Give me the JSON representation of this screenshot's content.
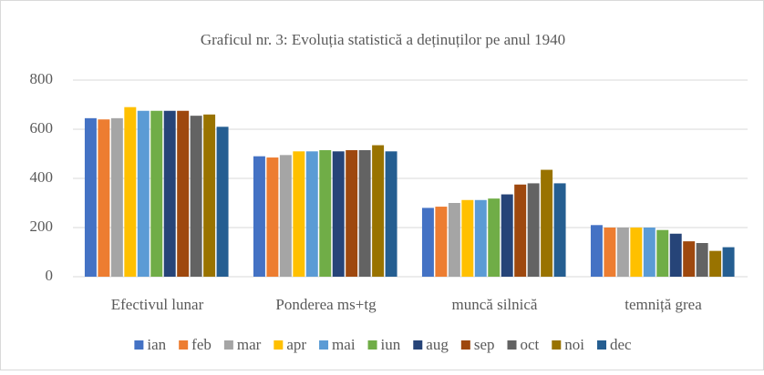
{
  "chart_data": {
    "type": "bar",
    "title": "Graficul nr. 3: Evoluția statistică a deținuților pe anul 1940",
    "categories": [
      "Efectivul lunar",
      "Ponderea ms+tg",
      "muncă silnică",
      "temniță grea"
    ],
    "series": [
      {
        "name": "ian",
        "color": "#4472c4",
        "values": [
          645,
          490,
          280,
          210
        ]
      },
      {
        "name": "feb",
        "color": "#ed7d31",
        "values": [
          640,
          485,
          285,
          200
        ]
      },
      {
        "name": "mar",
        "color": "#a5a5a5",
        "values": [
          645,
          495,
          300,
          200
        ]
      },
      {
        "name": "apr",
        "color": "#ffc000",
        "values": [
          690,
          510,
          312,
          200
        ]
      },
      {
        "name": "mai",
        "color": "#5b9bd5",
        "values": [
          675,
          510,
          312,
          200
        ]
      },
      {
        "name": "iun",
        "color": "#70ad47",
        "values": [
          675,
          515,
          318,
          190
        ]
      },
      {
        "name": "aug",
        "color": "#264478",
        "values": [
          675,
          510,
          335,
          175
        ]
      },
      {
        "name": "sep",
        "color": "#9e480e",
        "values": [
          675,
          515,
          375,
          144
        ]
      },
      {
        "name": "oct",
        "color": "#636363",
        "values": [
          655,
          515,
          380,
          137
        ]
      },
      {
        "name": "noi",
        "color": "#997300",
        "values": [
          660,
          535,
          435,
          105
        ]
      },
      {
        "name": "dec",
        "color": "#255e91",
        "values": [
          610,
          510,
          380,
          120
        ]
      }
    ],
    "ylim": [
      0,
      800
    ],
    "yticks": [
      0,
      200,
      400,
      600,
      800
    ],
    "grid": true,
    "legend": "bottom"
  }
}
